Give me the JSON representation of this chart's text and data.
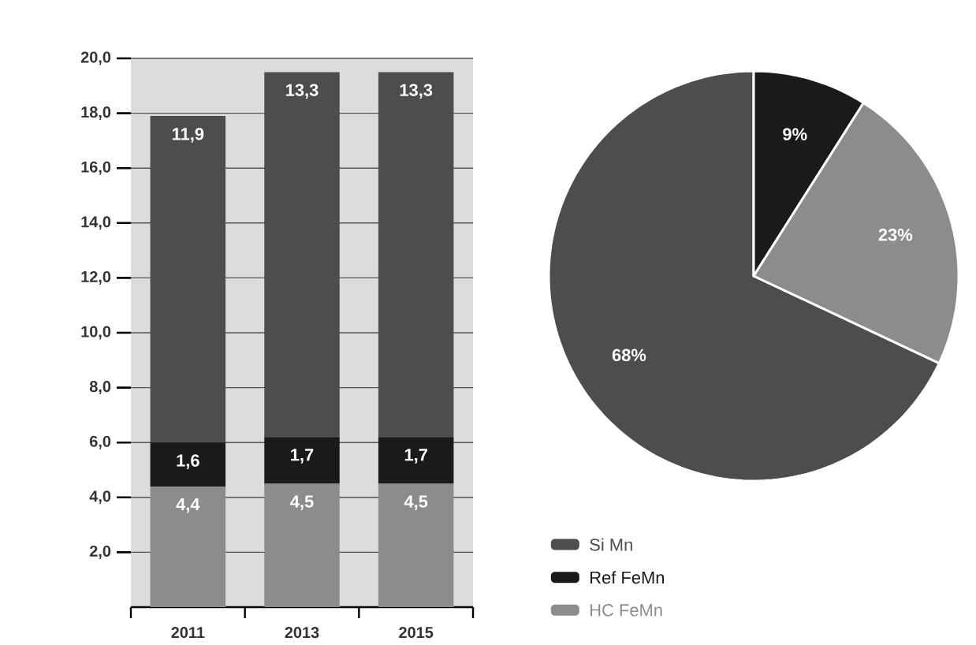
{
  "chart_data": [
    {
      "type": "bar",
      "categories": [
        "2011",
        "2013",
        "2015"
      ],
      "stacked": true,
      "grid": "y",
      "ylim": [
        0,
        20
      ],
      "yticks": [
        {
          "value": 2,
          "label": "2,0"
        },
        {
          "value": 4,
          "label": "4,0"
        },
        {
          "value": 6,
          "label": "6,0"
        },
        {
          "value": 8,
          "label": "8,0"
        },
        {
          "value": 10,
          "label": "10,0"
        },
        {
          "value": 12,
          "label": "12,0"
        },
        {
          "value": 14,
          "label": "14,0"
        },
        {
          "value": 16,
          "label": "16,0"
        },
        {
          "value": 18,
          "label": "18,0"
        },
        {
          "value": 20,
          "label": "20,0"
        }
      ],
      "series": [
        {
          "color": "#8c8c8c",
          "values": [
            4.4,
            4.5,
            4.5
          ],
          "value_labels": [
            "4,4",
            "4,5",
            "4,5"
          ]
        },
        {
          "color": "#1a1a1a",
          "values": [
            1.6,
            1.7,
            1.7
          ],
          "value_labels": [
            "1,6",
            "1,7",
            "1,7"
          ]
        },
        {
          "color": "#4d4d4d",
          "values": [
            11.9,
            13.3,
            13.3
          ],
          "value_labels": [
            "11,9",
            "13,3",
            "13,3"
          ]
        }
      ]
    },
    {
      "type": "pie",
      "categories": [
        "Si Mn",
        "Ref FeMn",
        "HC FeMn"
      ],
      "values": [
        68,
        9,
        23
      ],
      "colors": [
        "#4d4d4d",
        "#1a1a1a",
        "#8c8c8c"
      ],
      "value_labels": [
        "68%",
        "9%",
        "23%"
      ],
      "legend": "bottom left"
    }
  ]
}
